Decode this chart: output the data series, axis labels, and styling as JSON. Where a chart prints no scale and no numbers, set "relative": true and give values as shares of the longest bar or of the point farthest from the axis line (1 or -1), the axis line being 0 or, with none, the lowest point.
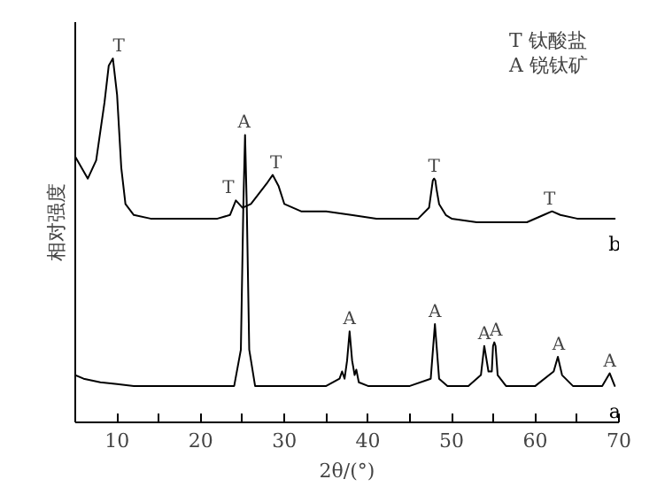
{
  "chart_data": {
    "type": "line",
    "relative": true,
    "xlabel": "2θ/(°)",
    "ylabel": "相对强度",
    "xlim": [
      5,
      70
    ],
    "xticks": [
      10,
      {
        "value": 15,
        "label": null
      },
      20,
      {
        "value": 25,
        "label": null
      },
      30,
      {
        "value": 35,
        "label": null
      },
      40,
      {
        "value": 45,
        "label": null
      },
      50,
      {
        "value": 55,
        "label": null
      },
      60,
      {
        "value": 65,
        "label": null
      },
      70
    ],
    "grid": false,
    "legend": false,
    "marker": "none",
    "line_style": "solid",
    "series": [
      {
        "name": "b",
        "color": "#000000",
        "x": [
          5,
          6,
          6.5,
          7.5,
          8.5,
          9,
          9.5,
          10,
          10.5,
          11,
          12,
          14,
          17,
          20,
          22,
          23.5,
          24.2,
          25,
          26,
          27,
          28,
          28.6,
          29.3,
          30,
          32,
          35,
          38,
          41,
          44,
          46,
          47.3,
          47.6,
          47.75,
          47.9,
          48.05,
          48.2,
          48.5,
          49.3,
          50,
          53,
          56,
          59,
          61,
          62,
          63,
          65,
          67.5,
          69.5
        ],
        "values": [
          0.73,
          0.69,
          0.67,
          0.72,
          0.88,
          0.98,
          1.0,
          0.9,
          0.7,
          0.6,
          0.57,
          0.56,
          0.56,
          0.56,
          0.56,
          0.57,
          0.61,
          0.59,
          0.6,
          0.63,
          0.66,
          0.68,
          0.65,
          0.6,
          0.58,
          0.58,
          0.57,
          0.56,
          0.56,
          0.56,
          0.59,
          0.64,
          0.665,
          0.67,
          0.665,
          0.64,
          0.6,
          0.57,
          0.56,
          0.55,
          0.55,
          0.55,
          0.57,
          0.58,
          0.57,
          0.56,
          0.56,
          0.56
        ]
      },
      {
        "name": "a",
        "color": "#000000",
        "x": [
          5,
          6,
          8,
          10,
          12,
          15,
          20,
          24,
          24.8,
          25.1,
          25.3,
          25.5,
          25.8,
          26.5,
          30,
          35,
          36.6,
          36.9,
          37.2,
          37.5,
          37.8,
          38.1,
          38.4,
          38.6,
          38.9,
          40,
          45,
          47.5,
          48,
          48.5,
          49.5,
          52,
          53.5,
          53.9,
          54.4,
          54.8,
          54.95,
          55.1,
          55.25,
          55.5,
          56.5,
          60,
          62.2,
          62.7,
          63.2,
          64.5,
          68,
          68.9,
          69.5
        ],
        "values": [
          0.13,
          0.12,
          0.11,
          0.105,
          0.1,
          0.1,
          0.1,
          0.1,
          0.2,
          0.6,
          0.79,
          0.6,
          0.2,
          0.1,
          0.1,
          0.1,
          0.12,
          0.14,
          0.12,
          0.17,
          0.25,
          0.17,
          0.13,
          0.145,
          0.11,
          0.1,
          0.1,
          0.12,
          0.27,
          0.12,
          0.1,
          0.1,
          0.13,
          0.21,
          0.14,
          0.14,
          0.21,
          0.22,
          0.21,
          0.13,
          0.1,
          0.1,
          0.14,
          0.18,
          0.13,
          0.1,
          0.1,
          0.135,
          0.1
        ]
      }
    ],
    "annotations": [
      "T 钛酸盐",
      "A 锐钛矿",
      {
        "text": "T",
        "x": 10.2,
        "y": 1.0
      },
      {
        "text": "T",
        "x": 23.3,
        "y": 0.61
      },
      {
        "text": "T",
        "x": 29.0,
        "y": 0.68
      },
      {
        "text": "T",
        "x": 47.9,
        "y": 0.67
      },
      {
        "text": "T",
        "x": 61.7,
        "y": 0.58
      },
      {
        "text": "A",
        "x": 25.2,
        "y": 0.79
      },
      {
        "text": "A",
        "x": 37.8,
        "y": 0.25
      },
      {
        "text": "A",
        "x": 48.0,
        "y": 0.27
      },
      {
        "text": "A",
        "x": 53.9,
        "y": 0.21
      },
      {
        "text": "A",
        "x": 55.3,
        "y": 0.22
      },
      {
        "text": "A",
        "x": 62.8,
        "y": 0.18
      },
      {
        "text": "A",
        "x": 68.9,
        "y": 0.135
      }
    ]
  }
}
